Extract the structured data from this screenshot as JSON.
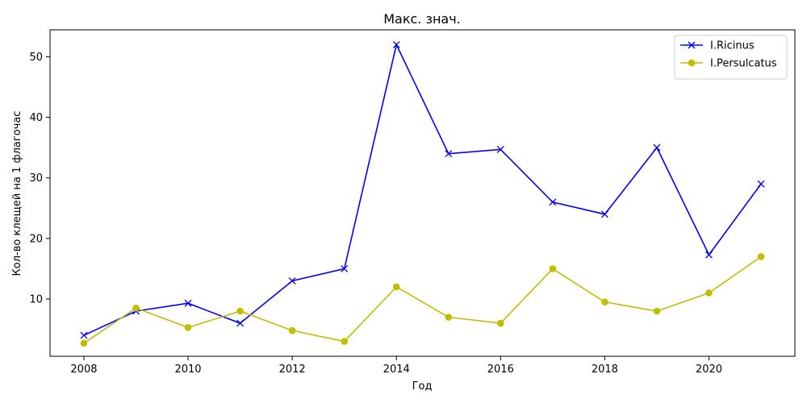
{
  "chart_data": {
    "type": "line",
    "title": "Макс. знач.",
    "xlabel": "Год",
    "ylabel": "Кол-во клещей на 1 флагочас",
    "xlim": [
      2007.35,
      2021.65
    ],
    "ylim": [
      0.55,
      54.45
    ],
    "xticks": [
      2008,
      2010,
      2012,
      2014,
      2016,
      2018,
      2020
    ],
    "yticks": [
      10,
      20,
      30,
      40,
      50
    ],
    "grid": false,
    "legend_position": "top-right",
    "x": [
      2008,
      2009,
      2010,
      2011,
      2012,
      2013,
      2014,
      2015,
      2016,
      2017,
      2018,
      2019,
      2020,
      2021
    ],
    "series": [
      {
        "name": "I.Ricinus",
        "color": "#0000ff",
        "marker": "x",
        "values": [
          4,
          8,
          9.3,
          6,
          13,
          15,
          52,
          34,
          34.7,
          26,
          24,
          35,
          17.3,
          29
        ]
      },
      {
        "name": "I.Persulcatus",
        "color": "#bfbf00",
        "marker": "o",
        "values": [
          2.7,
          8.5,
          5.3,
          8,
          4.8,
          3,
          12,
          7,
          6,
          15,
          9.5,
          8,
          11,
          17
        ]
      }
    ]
  }
}
